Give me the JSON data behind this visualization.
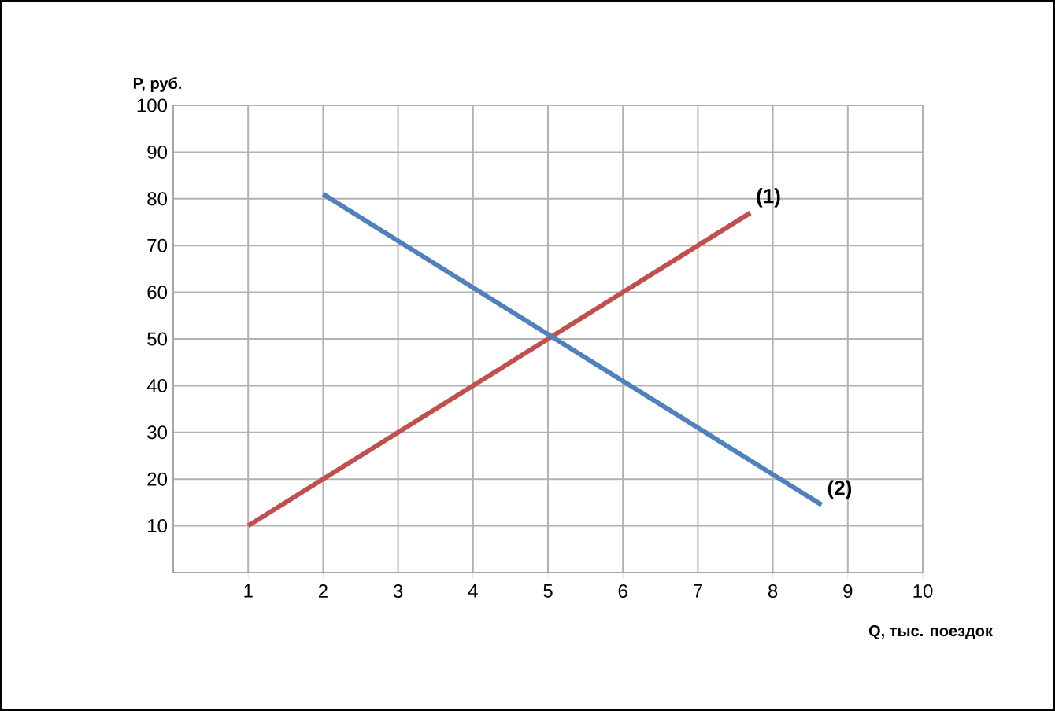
{
  "chart_data": {
    "type": "line",
    "xlabel": "Q, тыс. поездок",
    "ylabel": "P, руб.",
    "xlim": [
      0,
      10
    ],
    "ylim": [
      0,
      100
    ],
    "xticks": [
      1,
      2,
      3,
      4,
      5,
      6,
      7,
      8,
      9,
      10
    ],
    "yticks": [
      10,
      20,
      30,
      40,
      50,
      60,
      70,
      80,
      90,
      100
    ],
    "grid": true,
    "marker": "none",
    "line_style": "solid",
    "series": [
      {
        "name": "(1)",
        "color": "#c0504d",
        "x": [
          1,
          7.7
        ],
        "values": [
          10,
          77
        ]
      },
      {
        "name": "(2)",
        "color": "#4f81bd",
        "x": [
          2,
          8.65
        ],
        "values": [
          81,
          14.5
        ]
      }
    ]
  }
}
